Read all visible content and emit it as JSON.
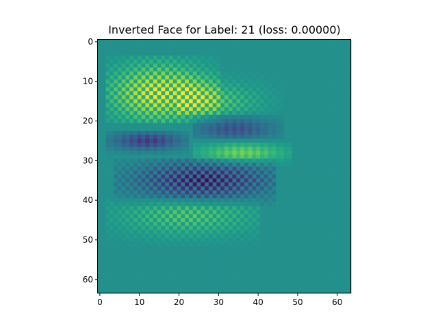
{
  "chart_data": {
    "type": "heatmap",
    "title": "Inverted Face for Label: 21 (loss: 0.00000)",
    "xlabel": "",
    "ylabel": "",
    "grid": false,
    "colormap": "viridis",
    "rows": 64,
    "cols": 64,
    "xlim": [
      -0.5,
      63.5
    ],
    "ylim": [
      63.5,
      -0.5
    ],
    "x_ticks": [
      0,
      10,
      20,
      30,
      40,
      50,
      60
    ],
    "y_ticks": [
      0,
      10,
      20,
      30,
      40,
      50,
      60
    ],
    "value_range": [
      -1,
      1
    ],
    "background_value": 0.0,
    "features": [
      {
        "kind": "checker",
        "row_range": [
          4,
          20
        ],
        "col_range": [
          2,
          30
        ],
        "center": [
          13,
          15
        ],
        "sign": 1,
        "amplitude": 1.0
      },
      {
        "kind": "checker",
        "row_range": [
          8,
          18
        ],
        "col_range": [
          20,
          46
        ],
        "center": [
          15,
          28
        ],
        "sign": 1,
        "amplitude": 0.55
      },
      {
        "kind": "band",
        "row_range": [
          18,
          24
        ],
        "col_range": [
          24,
          46
        ],
        "center": [
          22,
          34
        ],
        "sign": -1,
        "amplitude": 0.55
      },
      {
        "kind": "band",
        "row_range": [
          23,
          28
        ],
        "col_range": [
          2,
          22
        ],
        "center": [
          25,
          12
        ],
        "sign": -1,
        "amplitude": 0.7
      },
      {
        "kind": "band",
        "row_range": [
          26,
          31
        ],
        "col_range": [
          24,
          48
        ],
        "center": [
          28,
          36
        ],
        "sign": 1,
        "amplitude": 0.6
      },
      {
        "kind": "checker",
        "row_range": [
          30,
          41
        ],
        "col_range": [
          4,
          44
        ],
        "center": [
          35,
          26
        ],
        "sign": -1,
        "amplitude": 0.95
      },
      {
        "kind": "checker",
        "row_range": [
          40,
          51
        ],
        "col_range": [
          2,
          40
        ],
        "center": [
          44,
          22
        ],
        "sign": 1,
        "amplitude": 0.5
      }
    ]
  },
  "colors": {
    "viridis_stops": [
      "#440154",
      "#482878",
      "#3e4989",
      "#31688e",
      "#26828e",
      "#1f9e89",
      "#35b779",
      "#6ece58",
      "#b5de2b",
      "#fde725"
    ],
    "axis": "#000000",
    "figure_bg": "#ffffff"
  }
}
